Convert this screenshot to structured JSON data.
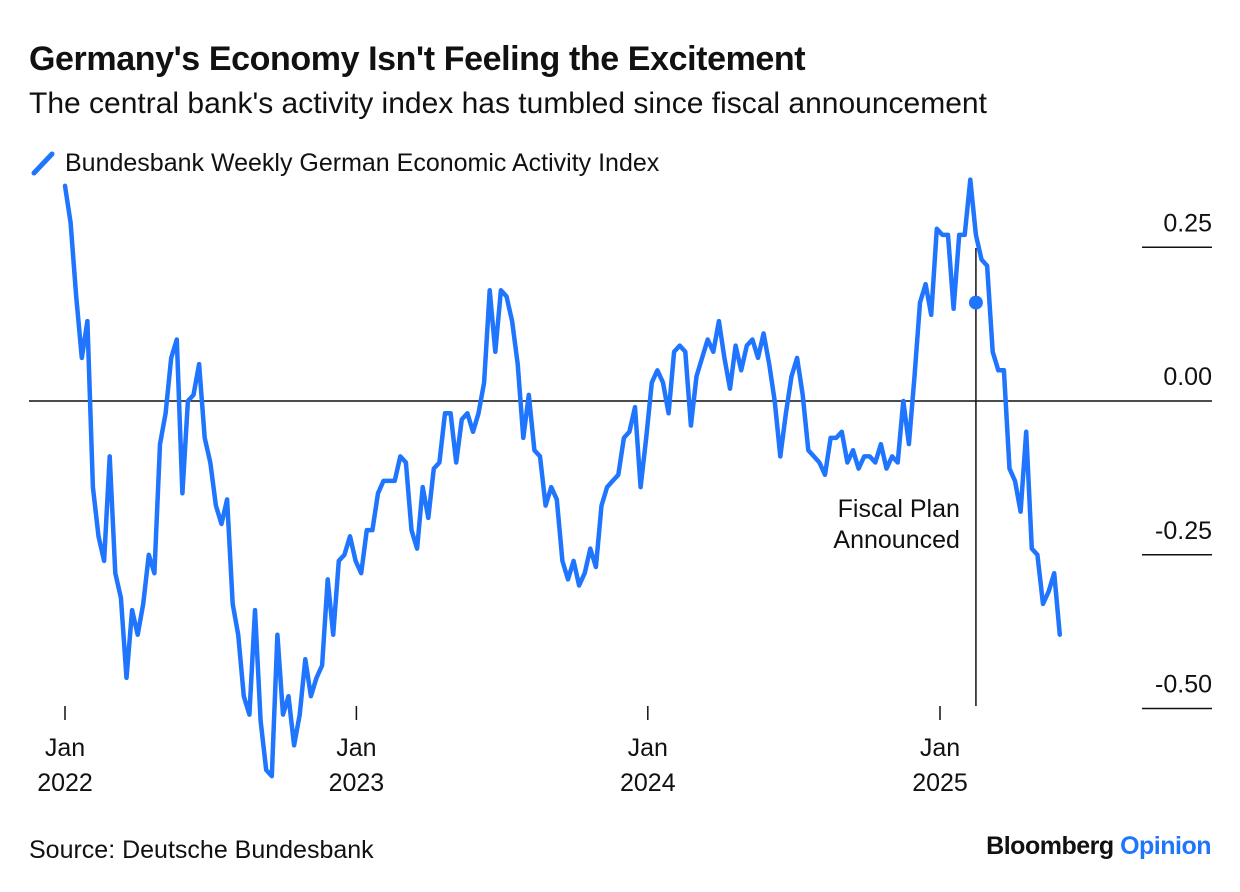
{
  "chart_data": {
    "type": "line",
    "title": "Germany's Economy Isn't Feeling the Excitement",
    "subtitle": "The central bank's activity index has tumbled since fiscal announcement",
    "xlabel": "",
    "ylabel": "",
    "ylim": [
      -0.5,
      0.25
    ],
    "yticks": [
      0.25,
      0.0,
      -0.25,
      -0.5
    ],
    "ytick_labels": [
      "0.25",
      "0.00",
      "-0.25",
      "-0.50"
    ],
    "xlim": [
      "2022-01-01",
      "2025-07-15"
    ],
    "xticks": [
      {
        "date": "2022-01-01",
        "month": "Jan",
        "year": "2022"
      },
      {
        "date": "2023-01-01",
        "month": "Jan",
        "year": "2023"
      },
      {
        "date": "2024-01-01",
        "month": "Jan",
        "year": "2024"
      },
      {
        "date": "2025-01-01",
        "month": "Jan",
        "year": "2025"
      }
    ],
    "grid": false,
    "zero_line": true,
    "legend": {
      "placement": "top-left",
      "entries": [
        "Bundesbank Weekly German Economic Activity Index"
      ]
    },
    "color": "#1f75fe",
    "series": [
      {
        "name": "Bundesbank Weekly German Economic Activity Index",
        "points": [
          [
            "2022-01-01",
            0.35
          ],
          [
            "2022-01-08",
            0.29
          ],
          [
            "2022-01-15",
            0.17
          ],
          [
            "2022-01-22",
            0.07
          ],
          [
            "2022-01-29",
            0.13
          ],
          [
            "2022-02-05",
            -0.14
          ],
          [
            "2022-02-12",
            -0.22
          ],
          [
            "2022-02-19",
            -0.26
          ],
          [
            "2022-02-26",
            -0.09
          ],
          [
            "2022-03-05",
            -0.28
          ],
          [
            "2022-03-12",
            -0.32
          ],
          [
            "2022-03-19",
            -0.45
          ],
          [
            "2022-03-26",
            -0.34
          ],
          [
            "2022-04-02",
            -0.38
          ],
          [
            "2022-04-09",
            -0.33
          ],
          [
            "2022-04-16",
            -0.25
          ],
          [
            "2022-04-23",
            -0.28
          ],
          [
            "2022-04-30",
            -0.07
          ],
          [
            "2022-05-07",
            -0.02
          ],
          [
            "2022-05-14",
            0.07
          ],
          [
            "2022-05-21",
            0.1
          ],
          [
            "2022-05-28",
            -0.15
          ],
          [
            "2022-06-04",
            0.0
          ],
          [
            "2022-06-11",
            0.01
          ],
          [
            "2022-06-18",
            0.06
          ],
          [
            "2022-06-25",
            -0.06
          ],
          [
            "2022-07-02",
            -0.1
          ],
          [
            "2022-07-09",
            -0.17
          ],
          [
            "2022-07-16",
            -0.2
          ],
          [
            "2022-07-23",
            -0.16
          ],
          [
            "2022-07-30",
            -0.33
          ],
          [
            "2022-08-06",
            -0.38
          ],
          [
            "2022-08-13",
            -0.48
          ],
          [
            "2022-08-20",
            -0.51
          ],
          [
            "2022-08-27",
            -0.34
          ],
          [
            "2022-09-03",
            -0.52
          ],
          [
            "2022-09-10",
            -0.6
          ],
          [
            "2022-09-17",
            -0.61
          ],
          [
            "2022-09-24",
            -0.38
          ],
          [
            "2022-10-01",
            -0.51
          ],
          [
            "2022-10-08",
            -0.48
          ],
          [
            "2022-10-15",
            -0.56
          ],
          [
            "2022-10-22",
            -0.51
          ],
          [
            "2022-10-29",
            -0.42
          ],
          [
            "2022-11-05",
            -0.48
          ],
          [
            "2022-11-12",
            -0.45
          ],
          [
            "2022-11-19",
            -0.43
          ],
          [
            "2022-11-26",
            -0.29
          ],
          [
            "2022-12-03",
            -0.38
          ],
          [
            "2022-12-10",
            -0.26
          ],
          [
            "2022-12-17",
            -0.25
          ],
          [
            "2022-12-24",
            -0.22
          ],
          [
            "2022-12-31",
            -0.26
          ],
          [
            "2023-01-07",
            -0.28
          ],
          [
            "2023-01-14",
            -0.21
          ],
          [
            "2023-01-21",
            -0.21
          ],
          [
            "2023-01-28",
            -0.15
          ],
          [
            "2023-02-04",
            -0.13
          ],
          [
            "2023-02-11",
            -0.13
          ],
          [
            "2023-02-18",
            -0.13
          ],
          [
            "2023-02-25",
            -0.09
          ],
          [
            "2023-03-04",
            -0.1
          ],
          [
            "2023-03-11",
            -0.21
          ],
          [
            "2023-03-18",
            -0.24
          ],
          [
            "2023-03-25",
            -0.14
          ],
          [
            "2023-04-01",
            -0.19
          ],
          [
            "2023-04-08",
            -0.11
          ],
          [
            "2023-04-15",
            -0.1
          ],
          [
            "2023-04-22",
            -0.02
          ],
          [
            "2023-04-29",
            -0.02
          ],
          [
            "2023-05-06",
            -0.1
          ],
          [
            "2023-05-13",
            -0.03
          ],
          [
            "2023-05-20",
            -0.02
          ],
          [
            "2023-05-27",
            -0.05
          ],
          [
            "2023-06-03",
            -0.02
          ],
          [
            "2023-06-10",
            0.03
          ],
          [
            "2023-06-17",
            0.18
          ],
          [
            "2023-06-24",
            0.08
          ],
          [
            "2023-07-01",
            0.18
          ],
          [
            "2023-07-08",
            0.17
          ],
          [
            "2023-07-15",
            0.13
          ],
          [
            "2023-07-22",
            0.06
          ],
          [
            "2023-07-29",
            -0.06
          ],
          [
            "2023-08-05",
            0.01
          ],
          [
            "2023-08-12",
            -0.08
          ],
          [
            "2023-08-19",
            -0.09
          ],
          [
            "2023-08-26",
            -0.17
          ],
          [
            "2023-09-02",
            -0.14
          ],
          [
            "2023-09-09",
            -0.16
          ],
          [
            "2023-09-16",
            -0.26
          ],
          [
            "2023-09-23",
            -0.29
          ],
          [
            "2023-09-30",
            -0.26
          ],
          [
            "2023-10-07",
            -0.3
          ],
          [
            "2023-10-14",
            -0.28
          ],
          [
            "2023-10-21",
            -0.24
          ],
          [
            "2023-10-28",
            -0.27
          ],
          [
            "2023-11-04",
            -0.17
          ],
          [
            "2023-11-11",
            -0.14
          ],
          [
            "2023-11-18",
            -0.13
          ],
          [
            "2023-11-25",
            -0.12
          ],
          [
            "2023-12-02",
            -0.06
          ],
          [
            "2023-12-09",
            -0.05
          ],
          [
            "2023-12-16",
            -0.01
          ],
          [
            "2023-12-23",
            -0.14
          ],
          [
            "2023-12-30",
            -0.06
          ],
          [
            "2024-01-06",
            0.03
          ],
          [
            "2024-01-13",
            0.05
          ],
          [
            "2024-01-20",
            0.03
          ],
          [
            "2024-01-27",
            -0.02
          ],
          [
            "2024-02-03",
            0.08
          ],
          [
            "2024-02-10",
            0.09
          ],
          [
            "2024-02-17",
            0.08
          ],
          [
            "2024-02-24",
            -0.04
          ],
          [
            "2024-03-02",
            0.04
          ],
          [
            "2024-03-09",
            0.07
          ],
          [
            "2024-03-16",
            0.1
          ],
          [
            "2024-03-23",
            0.08
          ],
          [
            "2024-03-30",
            0.13
          ],
          [
            "2024-04-06",
            0.07
          ],
          [
            "2024-04-13",
            0.02
          ],
          [
            "2024-04-20",
            0.09
          ],
          [
            "2024-04-27",
            0.05
          ],
          [
            "2024-05-04",
            0.09
          ],
          [
            "2024-05-11",
            0.1
          ],
          [
            "2024-05-18",
            0.07
          ],
          [
            "2024-05-25",
            0.11
          ],
          [
            "2024-06-01",
            0.06
          ],
          [
            "2024-06-08",
            0.0
          ],
          [
            "2024-06-15",
            -0.09
          ],
          [
            "2024-06-22",
            -0.02
          ],
          [
            "2024-06-29",
            0.04
          ],
          [
            "2024-07-06",
            0.07
          ],
          [
            "2024-07-13",
            0.01
          ],
          [
            "2024-07-20",
            -0.08
          ],
          [
            "2024-07-27",
            -0.09
          ],
          [
            "2024-08-03",
            -0.1
          ],
          [
            "2024-08-10",
            -0.12
          ],
          [
            "2024-08-17",
            -0.06
          ],
          [
            "2024-08-24",
            -0.06
          ],
          [
            "2024-08-31",
            -0.05
          ],
          [
            "2024-09-07",
            -0.1
          ],
          [
            "2024-09-14",
            -0.08
          ],
          [
            "2024-09-21",
            -0.11
          ],
          [
            "2024-09-28",
            -0.09
          ],
          [
            "2024-10-05",
            -0.09
          ],
          [
            "2024-10-12",
            -0.1
          ],
          [
            "2024-10-19",
            -0.07
          ],
          [
            "2024-10-26",
            -0.11
          ],
          [
            "2024-11-02",
            -0.09
          ],
          [
            "2024-11-09",
            -0.1
          ],
          [
            "2024-11-16",
            0.0
          ],
          [
            "2024-11-23",
            -0.07
          ],
          [
            "2024-11-30",
            0.04
          ],
          [
            "2024-12-07",
            0.16
          ],
          [
            "2024-12-14",
            0.19
          ],
          [
            "2024-12-21",
            0.14
          ],
          [
            "2024-12-28",
            0.28
          ],
          [
            "2025-01-04",
            0.27
          ],
          [
            "2025-01-11",
            0.27
          ],
          [
            "2025-01-18",
            0.15
          ],
          [
            "2025-01-25",
            0.27
          ],
          [
            "2025-02-01",
            0.27
          ],
          [
            "2025-02-08",
            0.36
          ],
          [
            "2025-02-15",
            0.27
          ],
          [
            "2025-02-22",
            0.23
          ],
          [
            "2025-03-01",
            0.22
          ],
          [
            "2025-03-08",
            0.08
          ],
          [
            "2025-03-15",
            0.05
          ],
          [
            "2025-03-22",
            0.05
          ],
          [
            "2025-03-29",
            -0.11
          ],
          [
            "2025-04-05",
            -0.13
          ],
          [
            "2025-04-12",
            -0.18
          ],
          [
            "2025-04-19",
            -0.05
          ],
          [
            "2025-04-26",
            -0.24
          ],
          [
            "2025-05-03",
            -0.25
          ],
          [
            "2025-05-10",
            -0.33
          ],
          [
            "2025-05-17",
            -0.31
          ],
          [
            "2025-05-24",
            -0.28
          ],
          [
            "2025-05-31",
            -0.38
          ]
        ]
      }
    ],
    "annotations": [
      {
        "date": "2025-02-15",
        "value": 0.16,
        "label_lines": [
          "Fiscal Plan",
          "Announced"
        ]
      }
    ]
  },
  "source": "Source: Deutsche Bundesbank",
  "brand": {
    "name": "Bloomberg",
    "suffix": "Opinion"
  }
}
